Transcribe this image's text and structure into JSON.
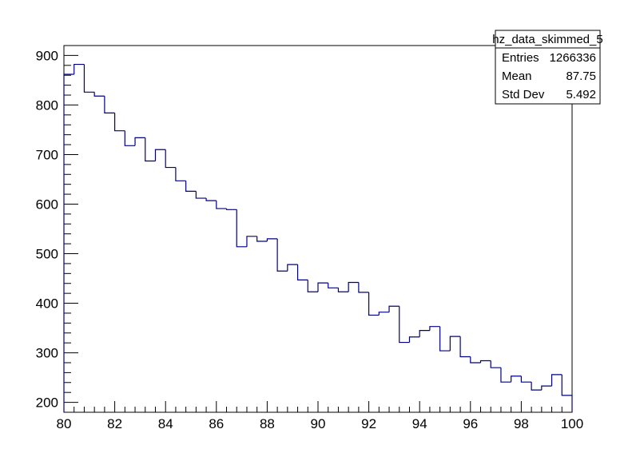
{
  "chart_data": {
    "type": "histogram",
    "title": "",
    "xlabel": "",
    "ylabel": "",
    "xlim": [
      80,
      100
    ],
    "ylim": [
      180,
      920
    ],
    "bin_width": 0.4,
    "x_bin_edges_start": 80,
    "x_ticks": [
      80,
      82,
      84,
      86,
      88,
      90,
      92,
      94,
      96,
      98,
      100
    ],
    "y_ticks": [
      200,
      300,
      400,
      500,
      600,
      700,
      800,
      900
    ],
    "line_color": "#000080",
    "values": [
      862,
      882,
      826,
      818,
      784,
      748,
      718,
      734,
      687,
      710,
      674,
      647,
      626,
      612,
      607,
      591,
      589,
      514,
      535,
      525,
      530,
      465,
      478,
      447,
      423,
      441,
      431,
      423,
      442,
      422,
      376,
      382,
      394,
      321,
      332,
      345,
      353,
      304,
      333,
      292,
      280,
      284,
      270,
      241,
      253,
      241,
      225,
      233,
      256,
      214
    ]
  },
  "stats_box": {
    "title": "hz_data_skimmed_5",
    "rows": [
      {
        "label": "Entries",
        "value": "1266336"
      },
      {
        "label": "Mean",
        "value": "87.75"
      },
      {
        "label": "Std Dev",
        "value": "5.492"
      }
    ]
  }
}
